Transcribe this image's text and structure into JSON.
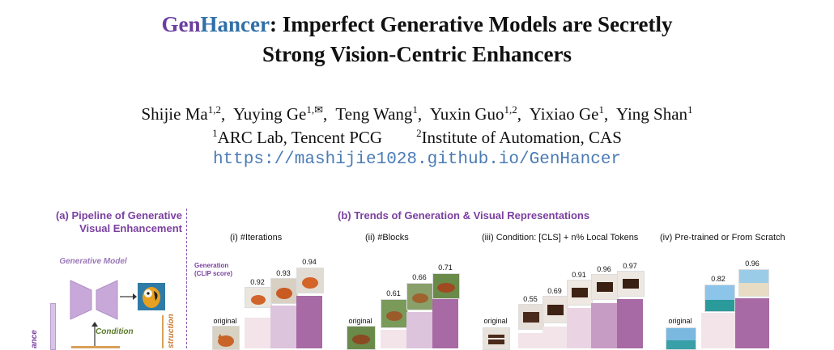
{
  "paper": {
    "title_gen": "Gen",
    "title_hancer": "Hancer",
    "title_rest1": ": Imperfect Generative Models are Secretly",
    "title_line2": "Strong Vision-Centric Enhancers",
    "authors": [
      {
        "name": "Shijie Ma",
        "sup": "1,2"
      },
      {
        "name": "Yuying Ge",
        "sup": "1,✉"
      },
      {
        "name": "Teng Wang",
        "sup": "1"
      },
      {
        "name": "Yuxin Guo",
        "sup": "1,2"
      },
      {
        "name": "Yixiao Ge",
        "sup": "1"
      },
      {
        "name": "Ying Shan",
        "sup": "1"
      }
    ],
    "aff1_sup": "1",
    "aff1": "ARC Lab, Tencent PCG",
    "aff2_sup": "2",
    "aff2": "Institute of Automation, CAS",
    "url": "https://mashijie1028.github.io/GenHancer"
  },
  "figure": {
    "panel_a_title_line1": "(a) Pipeline of Generative",
    "panel_a_title_line2": "Visual Enhancement",
    "generative_model": "Generative Model",
    "condition": "Condition",
    "left_partial": "ance",
    "right_partial": "struction",
    "panel_b_title": "(b) Trends of Generation & Visual Representations",
    "y_label_line1": "Generation",
    "y_label_line2": "(CLIP score)",
    "original": "original",
    "subpanels": [
      {
        "title": "(i) #Iterations",
        "values": [
          "0.92",
          "0.93",
          "0.94"
        ]
      },
      {
        "title": "(ii) #Blocks",
        "values": [
          "0.61",
          "0.66",
          "0.71"
        ]
      },
      {
        "title": "(iii) Condition: [CLS] + n% Local Tokens",
        "values": [
          "0.55",
          "0.69",
          "0.91",
          "0.96",
          "0.97"
        ]
      },
      {
        "title": "(iv) Pre-trained or From Scratch",
        "values": [
          "0.82",
          "0.96"
        ]
      }
    ]
  }
}
